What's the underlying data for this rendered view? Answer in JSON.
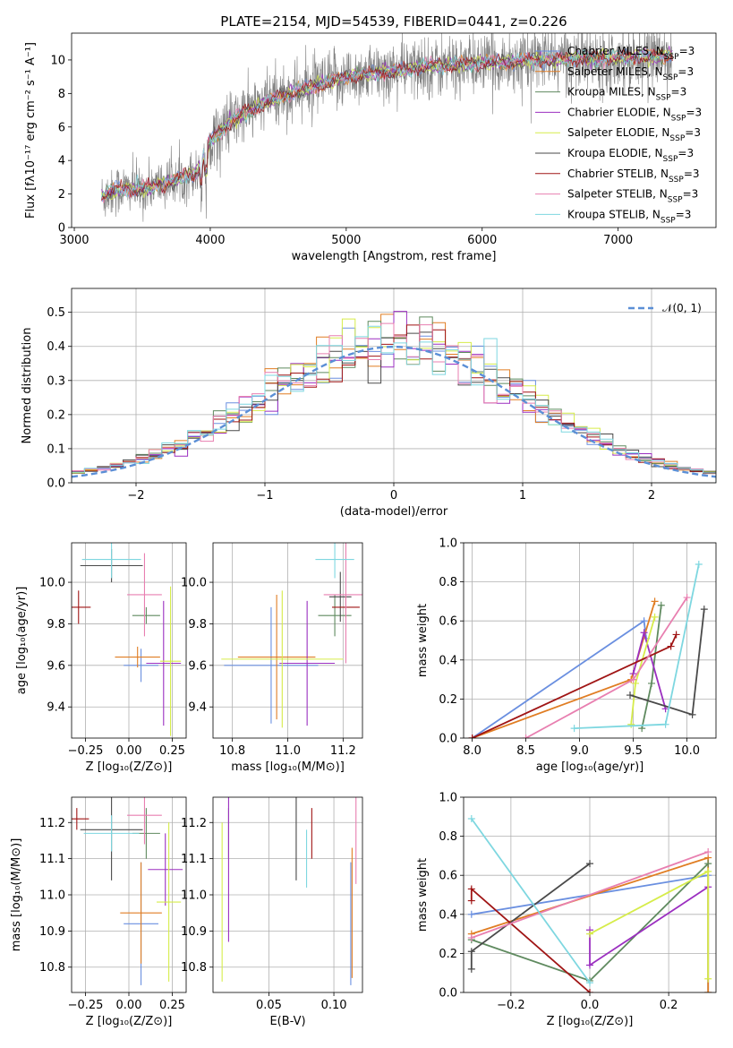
{
  "figure": {
    "title": "PLATE=2154, MJD=54539, FIBERID=0441, z=0.226"
  },
  "colors": [
    "#6a8fe0",
    "#e07d23",
    "#5f8a5f",
    "#9b2fc0",
    "#d6ec4a",
    "#4a4a4a",
    "#a01515",
    "#e87fb0",
    "#7ed7e0"
  ],
  "chart_data": [
    {
      "id": "spectrum",
      "type": "line",
      "xlabel": "wavelength [Angstrom, rest frame]",
      "ylabel": "Flux [fλ10⁻¹⁷ erg cm⁻² s⁻¹ A⁻¹]",
      "xlim": [
        2980,
        7720
      ],
      "ylim": [
        0,
        11.6
      ],
      "xticks": [
        3000,
        4000,
        5000,
        6000,
        7000
      ],
      "yticks": [
        0,
        2,
        4,
        6,
        8,
        10
      ],
      "grid": false,
      "legend_position": "top-right",
      "series": [
        {
          "name": "Chabrier MILES, N_SSP=3",
          "name_main": "Chabrier MILES, N",
          "name_sub": "SSP",
          "name_tail": "=3"
        },
        {
          "name": "Salpeter MILES, N_SSP=3",
          "name_main": "Salpeter MILES, N",
          "name_sub": "SSP",
          "name_tail": "=3"
        },
        {
          "name": "Kroupa MILES, N_SSP=3",
          "name_main": "Kroupa MILES, N",
          "name_sub": "SSP",
          "name_tail": "=3"
        },
        {
          "name": "Chabrier ELODIE, N_SSP=3",
          "name_main": "Chabrier ELODIE, N",
          "name_sub": "SSP",
          "name_tail": "=3"
        },
        {
          "name": "Salpeter ELODIE, N_SSP=3",
          "name_main": "Salpeter ELODIE, N",
          "name_sub": "SSP",
          "name_tail": "=3"
        },
        {
          "name": "Kroupa ELODIE, N_SSP=3",
          "name_main": "Kroupa ELODIE, N",
          "name_sub": "SSP",
          "name_tail": "=3"
        },
        {
          "name": "Chabrier STELIB, N_SSP=3",
          "name_main": "Chabrier STELIB, N",
          "name_sub": "SSP",
          "name_tail": "=3"
        },
        {
          "name": "Salpeter STELIB, N_SSP=3",
          "name_main": "Salpeter STELIB, N",
          "name_sub": "SSP",
          "name_tail": "=3"
        },
        {
          "name": "Kroupa STELIB, N_SSP=3",
          "name_main": "Kroupa STELIB, N",
          "name_sub": "SSP",
          "name_tail": "=3"
        }
      ],
      "continuum": {
        "x": [
          3200,
          3300,
          3500,
          3700,
          3900,
          4000,
          4200,
          4500,
          4800,
          5000,
          5300,
          5600,
          6000,
          6400,
          6800,
          7200,
          7400
        ],
        "y": [
          1.8,
          2.3,
          2.3,
          2.7,
          3.3,
          5.2,
          6.6,
          7.8,
          8.5,
          9.0,
          9.3,
          9.6,
          9.8,
          10.0,
          10.1,
          10.2,
          10.3
        ]
      }
    },
    {
      "id": "residuals",
      "type": "histogram",
      "xlabel": "(data-model)/error",
      "ylabel": "Normed distribution",
      "xlim": [
        -2.5,
        2.5
      ],
      "ylim": [
        0,
        0.57
      ],
      "xticks": [
        -2,
        -1,
        0,
        1,
        2
      ],
      "yticks": [
        0.0,
        0.1,
        0.2,
        0.3,
        0.4,
        0.5
      ],
      "grid": true,
      "legend_position": "top-right",
      "legend": "𝒩(0, 1)",
      "bins": 50
    },
    {
      "id": "age-vs-Z",
      "type": "errorbar",
      "xlabel": "Z [log₁₀(Z/Z⊙)]",
      "ylabel": "age  [log₁₀(age/yr)]",
      "xlim": [
        -0.33,
        0.33
      ],
      "ylim": [
        9.25,
        10.19
      ],
      "xticks": [
        -0.25,
        0.0,
        0.25
      ],
      "yticks": [
        9.4,
        9.6,
        9.8,
        10.0
      ],
      "grid": true,
      "points": [
        {
          "x": 0.07,
          "y": 9.6,
          "xerr": 0.1,
          "yerr": 0.08
        },
        {
          "x": 0.05,
          "y": 9.64,
          "xerr": 0.13,
          "yerr": 0.05
        },
        {
          "x": 0.1,
          "y": 9.84,
          "xerr": 0.08,
          "yerr": 0.04
        },
        {
          "x": 0.2,
          "y": 9.61,
          "xerr": 0.1,
          "yerr": 0.3
        },
        {
          "x": 0.24,
          "y": 9.62,
          "xerr": 0.06,
          "yerr": 0.36
        },
        {
          "x": -0.1,
          "y": 10.08,
          "xerr": 0.18,
          "yerr": 0.08
        },
        {
          "x": -0.29,
          "y": 9.88,
          "xerr": 0.07,
          "yerr": 0.08
        },
        {
          "x": 0.09,
          "y": 9.94,
          "xerr": 0.1,
          "yerr": 0.2
        },
        {
          "x": -0.1,
          "y": 10.11,
          "xerr": 0.17,
          "yerr": 0.09
        }
      ]
    },
    {
      "id": "age-vs-mass",
      "type": "errorbar",
      "xlabel": "mass [log₁₀(M/M⊙)]",
      "ylabel": "",
      "xlim": [
        10.73,
        11.27
      ],
      "ylim": [
        9.25,
        10.19
      ],
      "xticks": [
        10.8,
        11.0,
        11.2
      ],
      "yticks": [
        9.4,
        9.6,
        9.8,
        10.0
      ],
      "grid": true,
      "points": [
        {
          "x": 10.94,
          "y": 9.6,
          "xerr": 0.17,
          "yerr": 0.28
        },
        {
          "x": 10.96,
          "y": 9.64,
          "xerr": 0.14,
          "yerr": 0.3
        },
        {
          "x": 11.17,
          "y": 9.84,
          "xerr": 0.06,
          "yerr": 0.1
        },
        {
          "x": 11.07,
          "y": 9.61,
          "xerr": 0.1,
          "yerr": 0.3
        },
        {
          "x": 10.98,
          "y": 9.63,
          "xerr": 0.22,
          "yerr": 0.33
        },
        {
          "x": 11.19,
          "y": 9.93,
          "xerr": 0.04,
          "yerr": 0.12
        },
        {
          "x": 11.21,
          "y": 9.88,
          "xerr": 0.05,
          "yerr": 0.05
        },
        {
          "x": 11.21,
          "y": 9.94,
          "xerr": 0.08,
          "yerr": 0.33
        },
        {
          "x": 11.17,
          "y": 10.11,
          "xerr": 0.07,
          "yerr": 0.09
        }
      ]
    },
    {
      "id": "massweight-vs-age",
      "type": "line",
      "xlabel": "age  [log₁₀(age/yr)]",
      "ylabel": "mass weight",
      "xlim": [
        7.92,
        10.27
      ],
      "ylim": [
        0,
        1
      ],
      "xticks": [
        8.0,
        8.5,
        9.0,
        9.5,
        10.0
      ],
      "yticks": [
        0.0,
        0.2,
        0.4,
        0.6,
        0.8,
        1.0
      ],
      "grid": true,
      "series": [
        {
          "x": [
            8.0,
            9.6,
            9.62
          ],
          "y": [
            0.0,
            0.6,
            0.51
          ]
        },
        {
          "x": [
            8.0,
            9.48,
            9.7
          ],
          "y": [
            0.0,
            0.3,
            0.7
          ]
        },
        {
          "x": [
            9.58,
            9.67,
            9.76
          ],
          "y": [
            0.05,
            0.28,
            0.68
          ]
        },
        {
          "x": [
            9.5,
            9.6,
            9.8
          ],
          "y": [
            0.33,
            0.54,
            0.15
          ]
        },
        {
          "x": [
            9.48,
            9.52,
            9.7
          ],
          "y": [
            0.07,
            0.28,
            0.62
          ]
        },
        {
          "x": [
            9.47,
            10.05,
            10.16
          ],
          "y": [
            0.22,
            0.12,
            0.66
          ]
        },
        {
          "x": [
            8.0,
            9.85,
            9.9
          ],
          "y": [
            0.0,
            0.47,
            0.53
          ]
        },
        {
          "x": [
            8.5,
            9.5,
            10.0
          ],
          "y": [
            0.0,
            0.3,
            0.72
          ]
        },
        {
          "x": [
            8.95,
            9.8,
            10.11
          ],
          "y": [
            0.05,
            0.07,
            0.89
          ]
        }
      ]
    },
    {
      "id": "mass-vs-Z",
      "type": "errorbar",
      "xlabel": "Z [log₁₀(Z/Z⊙)]",
      "ylabel": "mass [log₁₀(M/M⊙)]",
      "xlim": [
        -0.33,
        0.33
      ],
      "ylim": [
        10.73,
        11.27
      ],
      "xticks": [
        -0.25,
        0.0,
        0.25
      ],
      "yticks": [
        10.8,
        10.9,
        11.0,
        11.1,
        11.2
      ],
      "grid": true,
      "points": [
        {
          "x": 0.07,
          "y": 10.92,
          "xerr": 0.1,
          "yerr": 0.17
        },
        {
          "x": 0.07,
          "y": 10.95,
          "xerr": 0.12,
          "yerr": 0.14
        },
        {
          "x": 0.1,
          "y": 11.17,
          "xerr": 0.08,
          "yerr": 0.07
        },
        {
          "x": 0.21,
          "y": 11.07,
          "xerr": 0.1,
          "yerr": 0.1
        },
        {
          "x": 0.23,
          "y": 10.98,
          "xerr": 0.07,
          "yerr": 0.22
        },
        {
          "x": -0.1,
          "y": 11.18,
          "xerr": 0.18,
          "yerr": 0.14
        },
        {
          "x": -0.3,
          "y": 11.21,
          "xerr": 0.07,
          "yerr": 0.03
        },
        {
          "x": 0.09,
          "y": 11.22,
          "xerr": 0.1,
          "yerr": 0.08
        },
        {
          "x": -0.1,
          "y": 11.17,
          "xerr": 0.16,
          "yerr": 0.05
        }
      ]
    },
    {
      "id": "mass-vs-EBV",
      "type": "errorbar",
      "xlabel": "E(B-V)",
      "ylabel": "",
      "xlim": [
        0.007,
        0.122
      ],
      "ylim": [
        10.73,
        11.27
      ],
      "xticks": [
        0.05,
        0.1
      ],
      "yticks": [
        10.8,
        10.9,
        11.0,
        11.1,
        11.2
      ],
      "grid": true,
      "points": [
        {
          "x": 0.113,
          "y": 10.92,
          "yerr": 0.17
        },
        {
          "x": 0.114,
          "y": 10.95,
          "yerr": 0.18
        },
        {
          "x": 0.019,
          "y": 11.17,
          "yerr": 0.07
        },
        {
          "x": 0.019,
          "y": 11.07,
          "yerr": 0.2
        },
        {
          "x": 0.014,
          "y": 10.98,
          "yerr": 0.22
        },
        {
          "x": 0.071,
          "y": 11.17,
          "yerr": 0.13
        },
        {
          "x": 0.083,
          "y": 11.17,
          "yerr": 0.07
        },
        {
          "x": 0.117,
          "y": 11.15,
          "yerr": 0.12
        },
        {
          "x": 0.079,
          "y": 11.1,
          "yerr": 0.08
        }
      ]
    },
    {
      "id": "massweight-vs-Z",
      "type": "line",
      "xlabel": "Z [log₁₀(Z/Z⊙)]",
      "ylabel": "mass weight",
      "xlim": [
        -0.32,
        0.32
      ],
      "ylim": [
        0,
        1
      ],
      "xticks": [
        -0.2,
        0.0,
        0.2
      ],
      "yticks": [
        0.0,
        0.2,
        0.4,
        0.6,
        0.8,
        1.0
      ],
      "grid": true,
      "series": [
        {
          "x": [
            -0.3,
            0.3,
            0.3
          ],
          "y": [
            0.4,
            0.6,
            0.0
          ]
        },
        {
          "x": [
            -0.3,
            0.3,
            0.3
          ],
          "y": [
            0.3,
            0.69,
            0.0
          ]
        },
        {
          "x": [
            -0.3,
            0.0,
            0.3
          ],
          "y": [
            0.27,
            0.06,
            0.66
          ]
        },
        {
          "x": [
            0.0,
            0.0,
            0.3
          ],
          "y": [
            0.32,
            0.14,
            0.54
          ]
        },
        {
          "x": [
            0.0,
            0.3,
            0.3
          ],
          "y": [
            0.3,
            0.62,
            0.07
          ]
        },
        {
          "x": [
            -0.3,
            -0.3,
            0.0
          ],
          "y": [
            0.12,
            0.21,
            0.66
          ]
        },
        {
          "x": [
            -0.3,
            -0.3,
            0.0
          ],
          "y": [
            0.47,
            0.53,
            0.0
          ]
        },
        {
          "x": [
            -0.3,
            0.3
          ],
          "y": [
            0.28,
            0.72
          ]
        },
        {
          "x": [
            -0.3,
            0.0
          ],
          "y": [
            0.89,
            0.05
          ]
        }
      ]
    }
  ]
}
